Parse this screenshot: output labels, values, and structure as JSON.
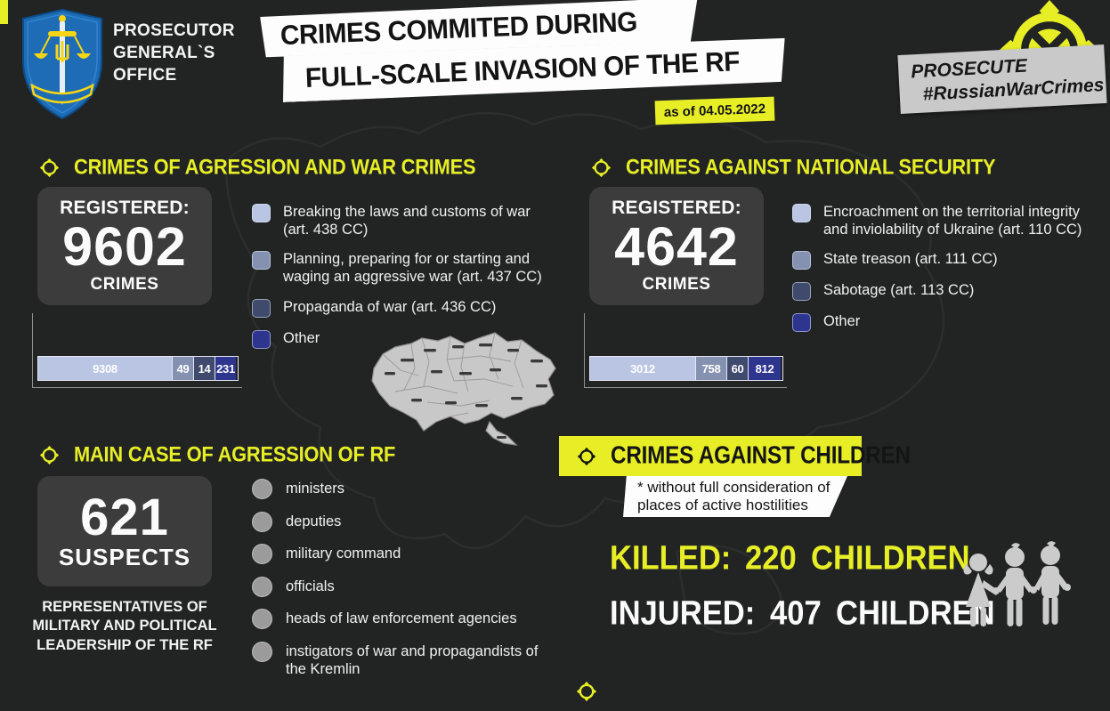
{
  "page": {
    "background": "#222423",
    "accent": "#e7ee26"
  },
  "header": {
    "org_name": "PROSECUTOR\nGENERAL`S\nOFFICE",
    "title_line1": "CRIMES COMMITED DURING",
    "title_line2": "FULL-SCALE INVASION OF THE RF",
    "date_badge": "as of 04.05.2022",
    "campaign_line1": "PROSECUTE",
    "campaign_line2": "#RussianWarCrimes"
  },
  "war_crimes": {
    "heading": "CRIMES OF AGRESSION AND WAR CRIMES",
    "registered_label": "REGISTERED:",
    "count": "9602",
    "unit": "CRIMES"
  },
  "national_security": {
    "heading": "CRIMES AGAINST NATIONAL SECURITY",
    "registered_label": "REGISTERED:",
    "count": "4642",
    "unit": "CRIMES"
  },
  "main_case": {
    "heading": "MAIN CASE OF AGRESSION OF RF",
    "count": "621",
    "unit": "SUSPECTS",
    "description": "REPRESENTATIVES  OF\nMILITARY AND POLITICAL\nLEADERSHIP OF THE RF",
    "categories": [
      "ministers",
      "deputies",
      "military command",
      "officials",
      "heads of law enforcement agencies",
      "instigators of war and propagandists of the Kremlin"
    ]
  },
  "children": {
    "heading": "CRIMES AGAINST CHILDREN",
    "note": "* without full consideration of places of active hostilities",
    "killed_label": "KILLED:",
    "killed_value": "220",
    "killed_unit": "CHILDREN",
    "injured_label": "INJURED:",
    "injured_value": "407",
    "injured_unit": "CHILDREN"
  },
  "chart_data": [
    {
      "type": "bar",
      "title": "Crimes of agression and war crimes (registered: 9602)",
      "orientation": "horizontal-stacked",
      "total": 9602,
      "segments": [
        {
          "label": "Breaking the laws and customs of war (art. 438 CC)",
          "value": 9308,
          "color": "#b9c5e2"
        },
        {
          "label": "Planning, preparing for or starting and waging an aggressive war (art. 437 CC)",
          "value": 49,
          "color": "#8491b0"
        },
        {
          "label": "Propaganda of war (art. 436 CC)",
          "value": 14,
          "color": "#3f4a6c"
        },
        {
          "label": "Other",
          "value": 231,
          "color": "#2e358f"
        }
      ]
    },
    {
      "type": "bar",
      "title": "Crimes against national security (registered: 4642)",
      "orientation": "horizontal-stacked",
      "total": 4642,
      "segments": [
        {
          "label": "Encroachment on the territorial integrity and inviolability of Ukraine (art. 110 CC)",
          "value": 3012,
          "color": "#b9c5e2"
        },
        {
          "label": "State treason (art. 111 CC)",
          "value": 758,
          "color": "#8491b0"
        },
        {
          "label": "Sabotage (art. 113 CC)",
          "value": 60,
          "color": "#3f4a6c"
        },
        {
          "label": "Other",
          "value": 812,
          "color": "#2e358f"
        }
      ]
    }
  ]
}
